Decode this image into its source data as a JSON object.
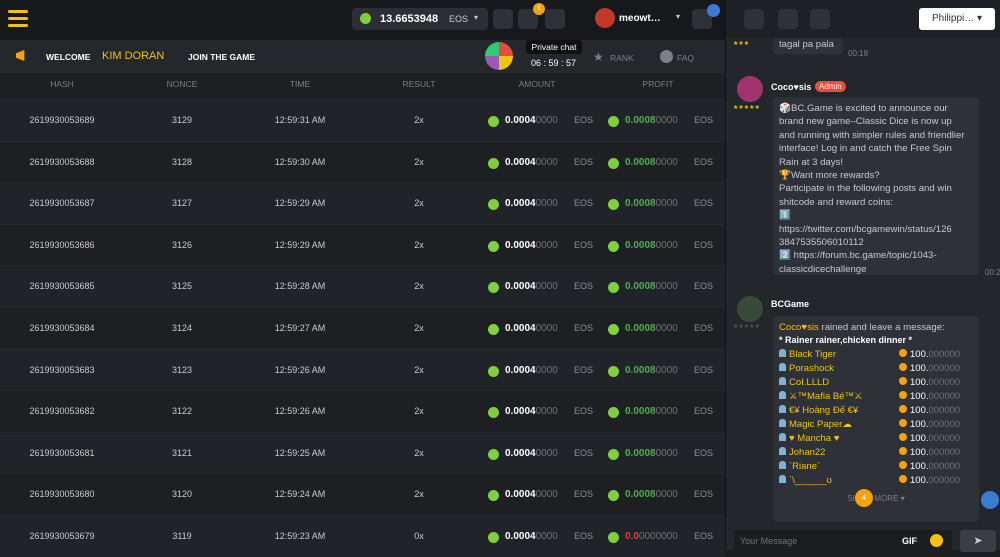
{
  "header": {
    "balance": "13.6653948",
    "currency": "EOS",
    "notification_count": "1",
    "username": "meowt…",
    "language": "Philippi…"
  },
  "banner": {
    "welcome": "WELCOME",
    "name": "KIM DORAN",
    "join": "JOIN THE GAME",
    "tooltip": "Private chat",
    "timer": "06 : 59 : 57",
    "rank": "RANK",
    "faq": "FAQ"
  },
  "table": {
    "columns": [
      "HASH",
      "NONCE",
      "TIME",
      "RESULT",
      "AMOUNT",
      "PROFIT"
    ],
    "rows": [
      {
        "hash": "2619930053689",
        "nonce": "3129",
        "time": "12:59:31 AM",
        "result": "2x",
        "amount": "0.0004",
        "amount_dim": "0000",
        "amount_currency": "EOS",
        "profit": "0.0008",
        "profit_dim": "0000",
        "profit_currency": "EOS",
        "win": true
      },
      {
        "hash": "2619930053688",
        "nonce": "3128",
        "time": "12:59:30 AM",
        "result": "2x",
        "amount": "0.0004",
        "amount_dim": "0000",
        "amount_currency": "EOS",
        "profit": "0.0008",
        "profit_dim": "0000",
        "profit_currency": "EOS",
        "win": true
      },
      {
        "hash": "2619930053687",
        "nonce": "3127",
        "time": "12:59:29 AM",
        "result": "2x",
        "amount": "0.0004",
        "amount_dim": "0000",
        "amount_currency": "EOS",
        "profit": "0.0008",
        "profit_dim": "0000",
        "profit_currency": "EOS",
        "win": true
      },
      {
        "hash": "2619930053686",
        "nonce": "3126",
        "time": "12:59:29 AM",
        "result": "2x",
        "amount": "0.0004",
        "amount_dim": "0000",
        "amount_currency": "EOS",
        "profit": "0.0008",
        "profit_dim": "0000",
        "profit_currency": "EOS",
        "win": true
      },
      {
        "hash": "2619930053685",
        "nonce": "3125",
        "time": "12:59:28 AM",
        "result": "2x",
        "amount": "0.0004",
        "amount_dim": "0000",
        "amount_currency": "EOS",
        "profit": "0.0008",
        "profit_dim": "0000",
        "profit_currency": "EOS",
        "win": true
      },
      {
        "hash": "2619930053684",
        "nonce": "3124",
        "time": "12:59:27 AM",
        "result": "2x",
        "amount": "0.0004",
        "amount_dim": "0000",
        "amount_currency": "EOS",
        "profit": "0.0008",
        "profit_dim": "0000",
        "profit_currency": "EOS",
        "win": true
      },
      {
        "hash": "2619930053683",
        "nonce": "3123",
        "time": "12:59:26 AM",
        "result": "2x",
        "amount": "0.0004",
        "amount_dim": "0000",
        "amount_currency": "EOS",
        "profit": "0.0008",
        "profit_dim": "0000",
        "profit_currency": "EOS",
        "win": true
      },
      {
        "hash": "2619930053682",
        "nonce": "3122",
        "time": "12:59:26 AM",
        "result": "2x",
        "amount": "0.0004",
        "amount_dim": "0000",
        "amount_currency": "EOS",
        "profit": "0.0008",
        "profit_dim": "0000",
        "profit_currency": "EOS",
        "win": true
      },
      {
        "hash": "2619930053681",
        "nonce": "3121",
        "time": "12:59:25 AM",
        "result": "2x",
        "amount": "0.0004",
        "amount_dim": "0000",
        "amount_currency": "EOS",
        "profit": "0.0008",
        "profit_dim": "0000",
        "profit_currency": "EOS",
        "win": true
      },
      {
        "hash": "2619930053680",
        "nonce": "3120",
        "time": "12:59:24 AM",
        "result": "2x",
        "amount": "0.0004",
        "amount_dim": "0000",
        "amount_currency": "EOS",
        "profit": "0.0008",
        "profit_dim": "0000",
        "profit_currency": "EOS",
        "win": true
      },
      {
        "hash": "2619930053679",
        "nonce": "3119",
        "time": "12:59:23 AM",
        "result": "0x",
        "amount": "0.0004",
        "amount_dim": "0000",
        "amount_currency": "EOS",
        "profit": "0.0",
        "profit_dim": "0000000",
        "profit_currency": "EOS",
        "win": false
      }
    ]
  },
  "chat": {
    "previous": {
      "text": "tagal pa pala",
      "time": "00:18"
    },
    "admin_message": {
      "user": "Coco♥sis",
      "badge": "Admin",
      "time": "00:2",
      "lines": [
        "🎲BC.Game is excited to announce our",
        "brand new game–Classic Dice is now up",
        "and running with simpler rules and friendlier",
        "interface! Log in and catch the Free Spin",
        "Rain at 3 days!",
        "🏆Want more rewards?",
        "Participate in the following posts and win",
        "shitcode and reward coins:",
        "1️⃣",
        "https://twitter.com/bcgamewin/status/126",
        "3847535506010112",
        "2️⃣ https://forum.bc.game/topic/1043-",
        "classicdicechallenge"
      ]
    },
    "rain_message": {
      "user": "BCGame",
      "rainer": "Coco♥sis",
      "action": "rained and leave a message:",
      "message": "* Rainer rainer,chicken dinner *",
      "recipients": [
        {
          "name": "Black Tiger",
          "amount": "100.",
          "amount_dim": "000000"
        },
        {
          "name": "Porashock",
          "amount": "100.",
          "amount_dim": "000000"
        },
        {
          "name": "CoI.LLLD",
          "amount": "100.",
          "amount_dim": "000000"
        },
        {
          "name": "⚔™Mafia Bé™⚔",
          "amount": "100.",
          "amount_dim": "000000"
        },
        {
          "name": "€¥ Hoàng Đế €¥",
          "amount": "100.",
          "amount_dim": "000000"
        },
        {
          "name": "Magic Paper☁",
          "amount": "100.",
          "amount_dim": "000000"
        },
        {
          "name": "♥ Mancha ♥",
          "amount": "100.",
          "amount_dim": "000000"
        },
        {
          "name": "Johan22",
          "amount": "100.",
          "amount_dim": "000000"
        },
        {
          "name": "`Riane`",
          "amount": "100.",
          "amount_dim": "000000"
        },
        {
          "name": "`\\______ʊ",
          "amount": "100.",
          "amount_dim": "000000"
        }
      ],
      "show_more": "SHOW MORE",
      "unread": "4"
    },
    "input": {
      "placeholder": "Your Message",
      "gif": "GIF"
    }
  }
}
